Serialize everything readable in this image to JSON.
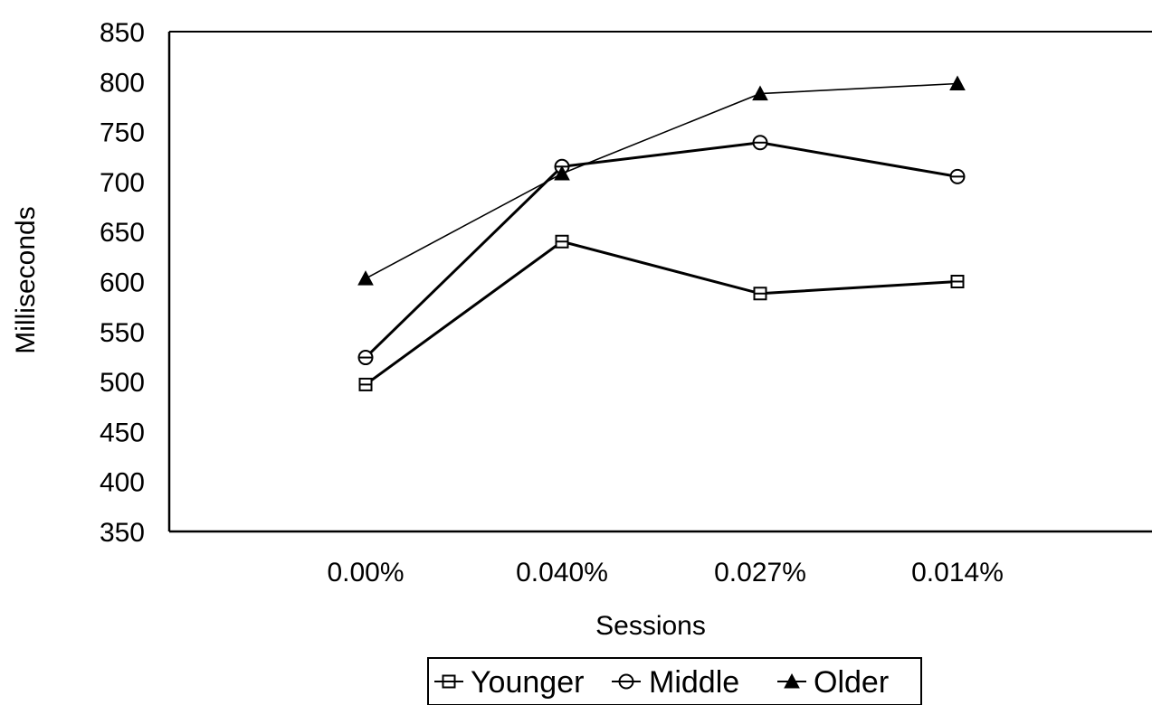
{
  "chart_data": {
    "type": "line",
    "title": "",
    "xlabel": "Sessions",
    "ylabel": "Milliseconds",
    "categories": [
      "0.00%",
      "0.040%",
      "0.027%",
      "0.014%"
    ],
    "ylim": [
      350,
      850
    ],
    "yticks": [
      350,
      400,
      450,
      500,
      550,
      600,
      650,
      700,
      750,
      800,
      850
    ],
    "grid": false,
    "legend_position": "bottom",
    "series": [
      {
        "name": "Younger",
        "marker": "square",
        "values": [
          497,
          640,
          588,
          600
        ]
      },
      {
        "name": "Middle",
        "marker": "circle",
        "values": [
          524,
          715,
          739,
          705
        ]
      },
      {
        "name": "Older",
        "marker": "triangle",
        "values": [
          603,
          708,
          788,
          798
        ]
      }
    ],
    "colors": {
      "line": "#000000",
      "axis": "#000000",
      "background": "#ffffff"
    }
  }
}
